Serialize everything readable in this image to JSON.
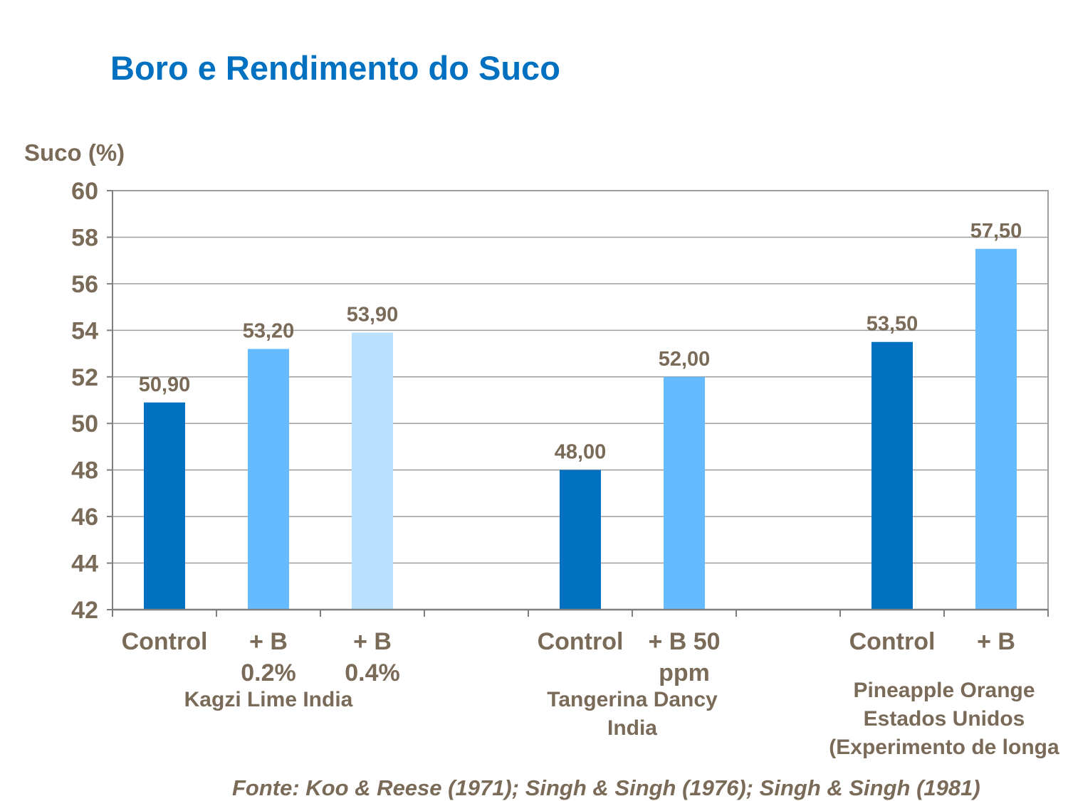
{
  "title": "Boro e Rendimento do Suco",
  "source": "Fonte: Koo & Reese (1971); Singh & Singh (1976); Singh & Singh (1981)",
  "chart_data": {
    "type": "bar",
    "ylabel": "Suco (%)",
    "ylim": [
      42,
      60
    ],
    "yticks": [
      42,
      44,
      46,
      48,
      50,
      52,
      54,
      56,
      58,
      60
    ],
    "grid": true,
    "groups": [
      {
        "label": [
          "Kagzi Lime India"
        ],
        "bars": [
          {
            "label": [
              "Control"
            ],
            "value": 50.9,
            "value_label": "50,90",
            "color": "#0070c0"
          },
          {
            "label": [
              "+ B",
              "0.2%"
            ],
            "value": 53.2,
            "value_label": "53,20",
            "color": "#66bbff"
          },
          {
            "label": [
              "+ B",
              "0.4%"
            ],
            "value": 53.9,
            "value_label": "53,90",
            "color": "#b9e0ff"
          }
        ]
      },
      {
        "label": [
          "Tangerina Dancy",
          "India"
        ],
        "bars": [
          {
            "label": [
              "Control"
            ],
            "value": 48.0,
            "value_label": "48,00",
            "color": "#0070c0"
          },
          {
            "label": [
              "+ B 50",
              "ppm"
            ],
            "value": 52.0,
            "value_label": "52,00",
            "color": "#66bbff"
          }
        ]
      },
      {
        "label": [
          "Pineapple Orange",
          "Estados Unidos",
          "(Experimento de longa"
        ],
        "bars": [
          {
            "label": [
              "Control"
            ],
            "value": 53.5,
            "value_label": "53,50",
            "color": "#0070c0"
          },
          {
            "label": [
              "+ B"
            ],
            "value": 57.5,
            "value_label": "57,50",
            "color": "#66bbff"
          }
        ]
      }
    ]
  }
}
